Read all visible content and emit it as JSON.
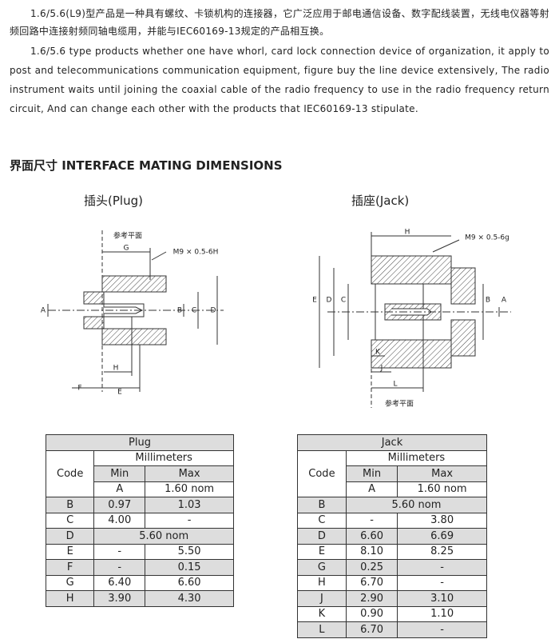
{
  "intro": {
    "cn": "1.6/5.6(L9)型产品是一种具有螺纹、卡锁机构的连接器，它广泛应用于邮电通信设备、数字配线装置，无线电仪器等射频回路中连接射频同轴电缆用，并能与IEC60169-13规定的产品相互换。",
    "en": "1.6/5.6 type products whether one have whorl, card lock connection device of organization, it apply to post and telecommunications communication equipment, figure buy the line device extensively, The radio instrument waits until joining the coaxial cable of the radio frequency to use in the radio frequency return circuit, And can change each other with the products that IEC60169-13 stipulate."
  },
  "section_title": "界面尺寸 INTERFACE MATING DIMENSIONS",
  "plug": {
    "title": "插头(Plug)",
    "drawing": {
      "ref_plane": "参考平面",
      "thread": "M9 × 0.5-6H",
      "dims": [
        "G",
        "A",
        "B",
        "C",
        "D",
        "H",
        "F",
        "E"
      ]
    },
    "table": {
      "title": "Plug",
      "code": "Code",
      "unit": "Millimeters",
      "min": "Min",
      "max": "Max",
      "rows": [
        [
          "A",
          "1.60 nom"
        ],
        [
          "B",
          "0.97",
          "1.03"
        ],
        [
          "C",
          "4.00",
          "-"
        ],
        [
          "D",
          "5.60 nom"
        ],
        [
          "E",
          "-",
          "5.50"
        ],
        [
          "F",
          "-",
          "0.15"
        ],
        [
          "G",
          "6.40",
          "6.60"
        ],
        [
          "H",
          "3.90",
          "4.30"
        ]
      ]
    }
  },
  "jack": {
    "title": "插座(Jack)",
    "drawing": {
      "ref_plane": "参考平面",
      "thread": "M9 × 0.5-6g",
      "dims": [
        "H",
        "E",
        "D",
        "C",
        "B",
        "A",
        "K",
        "J",
        "L"
      ]
    },
    "table": {
      "title": "Jack",
      "code": "Code",
      "unit": "Millimeters",
      "min": "Min",
      "max": "Max",
      "rows": [
        [
          "A",
          "1.60 nom"
        ],
        [
          "B",
          "5.60 nom"
        ],
        [
          "C",
          "-",
          "3.80"
        ],
        [
          "D",
          "6.60",
          "6.69"
        ],
        [
          "E",
          "8.10",
          "8.25"
        ],
        [
          "G",
          "0.25",
          "-"
        ],
        [
          "H",
          "6.70",
          "-"
        ],
        [
          "J",
          "2.90",
          "3.10"
        ],
        [
          "K",
          "0.90",
          "1.10"
        ],
        [
          "L",
          "6.70",
          "-"
        ]
      ]
    }
  }
}
